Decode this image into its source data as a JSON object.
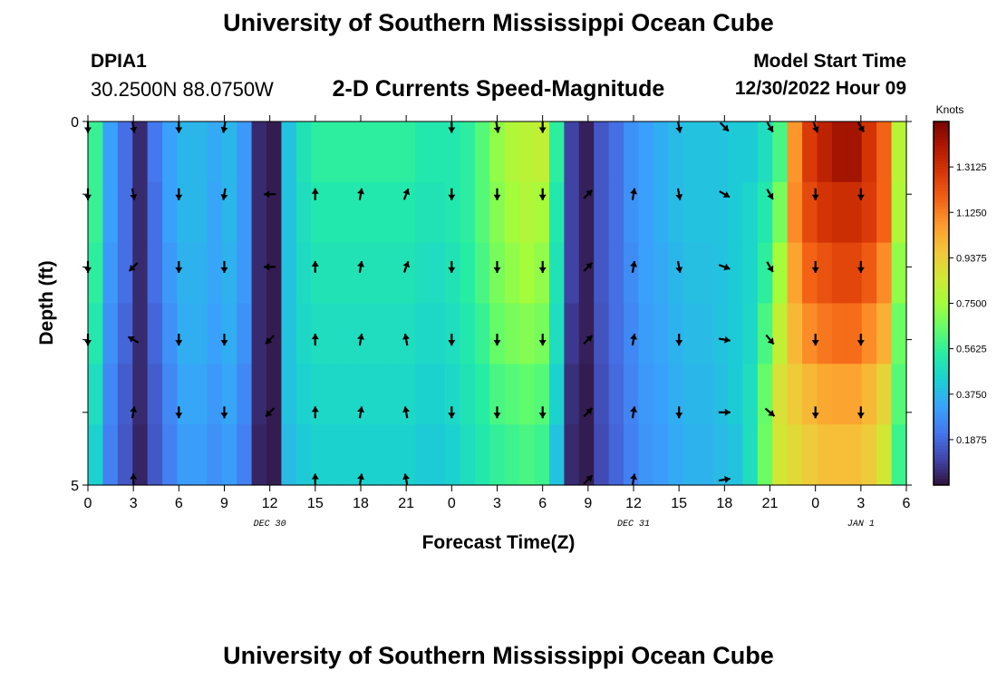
{
  "header": {
    "title": "University of Southern Mississippi Ocean Cube",
    "station_id": "DPIA1",
    "station_coords": "30.2500N  88.0750W",
    "chart_title": "2-D Currents Speed-Magnitude",
    "model_start_label": "Model Start Time",
    "model_start_value": "12/30/2022 Hour 09"
  },
  "footer": {
    "title": "University of Southern Mississippi Ocean Cube"
  },
  "chart_data": {
    "type": "heatmap",
    "title": "2-D Currents Speed-Magnitude",
    "xlabel": "Forecast Time(Z)",
    "ylabel": "Depth (ft)",
    "x_tick_labels": [
      "0",
      "3",
      "6",
      "9",
      "12",
      "15",
      "18",
      "21",
      "0",
      "3",
      "6",
      "9",
      "12",
      "15",
      "18",
      "21",
      "0",
      "3",
      "6"
    ],
    "x_hours": [
      0,
      3,
      6,
      9,
      12,
      15,
      18,
      21,
      24,
      27,
      30,
      33,
      36,
      39,
      42,
      45,
      48,
      51,
      54
    ],
    "date_labels": [
      {
        "label": "DEC 30",
        "hour": 12
      },
      {
        "label": "DEC 31",
        "hour": 36
      },
      {
        "label": "JAN 1",
        "hour": 51
      }
    ],
    "y_tick_labels": [
      "0",
      "5"
    ],
    "ylim": [
      0,
      5
    ],
    "colorbar": {
      "title": "Knots",
      "tick_labels": [
        "1.3125",
        "1.1250",
        "0.9375",
        "0.7500",
        "0.5625",
        "0.3750",
        "0.1875"
      ],
      "tick_values": [
        1.3125,
        1.125,
        0.9375,
        0.75,
        0.5625,
        0.375,
        0.1875
      ],
      "range": [
        0,
        1.5
      ]
    },
    "colors": {
      "c000": "#30123b",
      "c010": "#4145ab",
      "c020": "#4675ed",
      "c030": "#39a2fc",
      "c040": "#1bcfd4",
      "c050": "#24eca6",
      "c060": "#61fc6c",
      "c070": "#a4fc3b",
      "c080": "#d1e834",
      "c090": "#f3c63a",
      "c100": "#fe9b2d",
      "c110": "#f36315",
      "c120": "#d93806",
      "c130": "#b11901",
      "c140": "#7a0402"
    },
    "column_hours": [
      0,
      1,
      2,
      3,
      4,
      5,
      6,
      7,
      8,
      9,
      10,
      11,
      12,
      13,
      14,
      15,
      16,
      17,
      18,
      19,
      20,
      21,
      22,
      23,
      24,
      25,
      26,
      27,
      28,
      29,
      30,
      31,
      32,
      33,
      34,
      35,
      36,
      37,
      38,
      39,
      40,
      41,
      42,
      43,
      44,
      45,
      46,
      47,
      48,
      49,
      50,
      51,
      52,
      53,
      54
    ],
    "depth_rows": [
      0,
      1,
      2,
      3,
      4,
      5
    ],
    "speed_knots": [
      [
        0.57,
        0.32,
        0.2,
        0.05,
        0.22,
        0.32,
        0.37,
        0.37,
        0.34,
        0.37,
        0.3,
        0.05,
        0.02,
        0.4,
        0.5,
        0.55,
        0.55,
        0.55,
        0.55,
        0.55,
        0.55,
        0.55,
        0.52,
        0.52,
        0.52,
        0.55,
        0.62,
        0.72,
        0.78,
        0.8,
        0.82,
        0.55,
        0.1,
        0.03,
        0.15,
        0.2,
        0.28,
        0.32,
        0.35,
        0.38,
        0.4,
        0.4,
        0.4,
        0.42,
        0.42,
        0.48,
        0.6,
        1.08,
        1.28,
        1.36,
        1.42,
        1.42,
        1.3,
        1.18,
        0.8
      ],
      [
        0.57,
        0.32,
        0.2,
        0.05,
        0.2,
        0.32,
        0.37,
        0.37,
        0.33,
        0.37,
        0.3,
        0.05,
        0.02,
        0.4,
        0.48,
        0.52,
        0.52,
        0.52,
        0.52,
        0.52,
        0.52,
        0.52,
        0.5,
        0.5,
        0.52,
        0.55,
        0.62,
        0.7,
        0.75,
        0.78,
        0.76,
        0.52,
        0.1,
        0.03,
        0.15,
        0.2,
        0.28,
        0.32,
        0.35,
        0.38,
        0.4,
        0.4,
        0.4,
        0.42,
        0.45,
        0.52,
        0.68,
        1.1,
        1.24,
        1.3,
        1.32,
        1.32,
        1.28,
        1.18,
        0.78
      ],
      [
        0.55,
        0.3,
        0.2,
        0.05,
        0.2,
        0.3,
        0.36,
        0.36,
        0.33,
        0.36,
        0.3,
        0.05,
        0.02,
        0.4,
        0.47,
        0.5,
        0.5,
        0.5,
        0.5,
        0.5,
        0.5,
        0.5,
        0.48,
        0.48,
        0.5,
        0.54,
        0.6,
        0.68,
        0.72,
        0.75,
        0.72,
        0.5,
        0.1,
        0.03,
        0.15,
        0.2,
        0.27,
        0.32,
        0.34,
        0.37,
        0.39,
        0.39,
        0.4,
        0.42,
        0.45,
        0.55,
        0.75,
        1.05,
        1.18,
        1.22,
        1.25,
        1.25,
        1.2,
        1.1,
        0.72
      ],
      [
        0.52,
        0.28,
        0.18,
        0.05,
        0.18,
        0.28,
        0.35,
        0.35,
        0.32,
        0.35,
        0.28,
        0.05,
        0.02,
        0.4,
        0.46,
        0.48,
        0.48,
        0.48,
        0.48,
        0.48,
        0.48,
        0.48,
        0.46,
        0.46,
        0.48,
        0.52,
        0.57,
        0.65,
        0.68,
        0.7,
        0.68,
        0.48,
        0.08,
        0.03,
        0.14,
        0.2,
        0.26,
        0.31,
        0.33,
        0.36,
        0.38,
        0.38,
        0.4,
        0.42,
        0.46,
        0.6,
        0.82,
        1.0,
        1.1,
        1.14,
        1.16,
        1.16,
        1.1,
        1.02,
        0.66
      ],
      [
        0.48,
        0.26,
        0.16,
        0.05,
        0.16,
        0.26,
        0.33,
        0.33,
        0.3,
        0.33,
        0.26,
        0.05,
        0.02,
        0.4,
        0.44,
        0.46,
        0.46,
        0.46,
        0.46,
        0.46,
        0.46,
        0.46,
        0.44,
        0.44,
        0.46,
        0.5,
        0.54,
        0.6,
        0.62,
        0.64,
        0.62,
        0.44,
        0.06,
        0.02,
        0.13,
        0.19,
        0.25,
        0.3,
        0.32,
        0.35,
        0.37,
        0.37,
        0.39,
        0.42,
        0.48,
        0.65,
        0.88,
        0.95,
        1.0,
        1.04,
        1.05,
        1.05,
        1.0,
        0.92,
        0.62
      ],
      [
        0.44,
        0.24,
        0.15,
        0.04,
        0.15,
        0.24,
        0.31,
        0.31,
        0.28,
        0.31,
        0.24,
        0.04,
        0.02,
        0.38,
        0.42,
        0.44,
        0.44,
        0.44,
        0.44,
        0.44,
        0.44,
        0.44,
        0.42,
        0.42,
        0.44,
        0.48,
        0.52,
        0.56,
        0.58,
        0.6,
        0.58,
        0.4,
        0.05,
        0.02,
        0.12,
        0.18,
        0.24,
        0.29,
        0.31,
        0.34,
        0.36,
        0.36,
        0.38,
        0.4,
        0.48,
        0.66,
        0.86,
        0.9,
        0.95,
        0.98,
        0.98,
        0.98,
        0.95,
        0.86,
        0.58
      ]
    ],
    "vector_hours": [
      0,
      3,
      6,
      9,
      12,
      15,
      18,
      21,
      24,
      27,
      30,
      33,
      36,
      39,
      42,
      45,
      48,
      51,
      54
    ],
    "vector_depths": [
      0,
      1,
      2,
      3,
      4,
      5
    ],
    "direction_deg": [
      [
        180,
        170,
        180,
        190,
        null,
        null,
        null,
        null,
        180,
        170,
        180,
        null,
        null,
        170,
        135,
        150,
        160,
        150,
        null
      ],
      [
        180,
        170,
        180,
        190,
        270,
        0,
        10,
        20,
        180,
        180,
        180,
        45,
        10,
        170,
        120,
        150,
        180,
        180,
        null
      ],
      [
        180,
        225,
        180,
        180,
        270,
        0,
        10,
        20,
        180,
        180,
        180,
        45,
        10,
        170,
        110,
        150,
        180,
        180,
        null
      ],
      [
        180,
        300,
        180,
        180,
        225,
        0,
        10,
        350,
        180,
        180,
        180,
        45,
        10,
        180,
        100,
        140,
        180,
        180,
        null
      ],
      [
        null,
        10,
        180,
        180,
        225,
        0,
        10,
        350,
        180,
        180,
        180,
        45,
        10,
        180,
        90,
        130,
        180,
        180,
        null
      ],
      [
        null,
        0,
        null,
        null,
        null,
        0,
        10,
        350,
        null,
        null,
        null,
        45,
        10,
        null,
        80,
        null,
        null,
        null,
        null
      ]
    ]
  }
}
